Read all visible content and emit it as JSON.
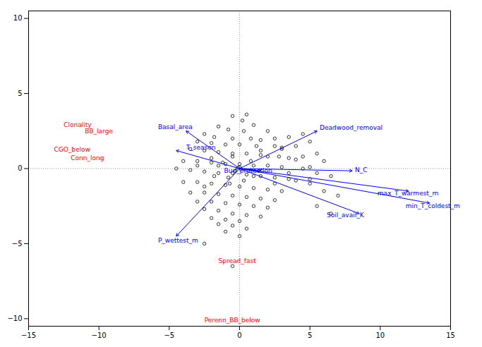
{
  "chart_data": {
    "type": "biplot",
    "background": "#ffffff",
    "xlim": [
      -15,
      15
    ],
    "ylim": [
      -10.5,
      10.5
    ],
    "xticks": [
      -15,
      -10,
      -5,
      0,
      5,
      10,
      15
    ],
    "yticks": [
      -10,
      -5,
      0,
      5,
      10
    ],
    "grid": false,
    "reference_lines": {
      "x": [
        0
      ],
      "y": [
        0
      ],
      "color": "gray",
      "line_style": "dotted"
    },
    "points": {
      "color": "black",
      "marker": "open_circle",
      "values": [
        [
          0.5,
          3.6
        ],
        [
          -0.5,
          3.5
        ],
        [
          0.2,
          3.2
        ],
        [
          1.0,
          2.9
        ],
        [
          -1.5,
          2.8
        ],
        [
          -0.8,
          2.6
        ],
        [
          0.3,
          2.5
        ],
        [
          2.0,
          2.5
        ],
        [
          -2.5,
          2.3
        ],
        [
          -1.8,
          2.1
        ],
        [
          -0.5,
          2.0
        ],
        [
          0.8,
          2.0
        ],
        [
          1.5,
          1.9
        ],
        [
          -3.0,
          1.8
        ],
        [
          -2.0,
          1.7
        ],
        [
          -1.0,
          1.6
        ],
        [
          0.0,
          1.6
        ],
        [
          1.2,
          1.5
        ],
        [
          2.5,
          1.5
        ],
        [
          3.0,
          1.4
        ],
        [
          -3.5,
          1.3
        ],
        [
          -2.5,
          1.2
        ],
        [
          -1.5,
          1.1
        ],
        [
          -0.5,
          1.0
        ],
        [
          0.5,
          1.0
        ],
        [
          1.5,
          0.9
        ],
        [
          2.8,
          0.8
        ],
        [
          3.5,
          0.7
        ],
        [
          4.0,
          0.6
        ],
        [
          -4.0,
          0.5
        ],
        [
          -3.0,
          0.5
        ],
        [
          -2.0,
          0.4
        ],
        [
          -1.0,
          0.3
        ],
        [
          0.0,
          0.3
        ],
        [
          1.0,
          0.2
        ],
        [
          2.0,
          0.2
        ],
        [
          3.0,
          0.1
        ],
        [
          4.5,
          0.0
        ],
        [
          5.0,
          0.1
        ],
        [
          -4.5,
          0.0
        ],
        [
          -3.5,
          -0.1
        ],
        [
          -2.5,
          -0.2
        ],
        [
          -1.5,
          -0.3
        ],
        [
          -0.5,
          -0.3
        ],
        [
          0.5,
          -0.4
        ],
        [
          1.5,
          -0.5
        ],
        [
          2.5,
          -0.6
        ],
        [
          3.5,
          -0.7
        ],
        [
          4.0,
          -0.8
        ],
        [
          5.0,
          -0.7
        ],
        [
          -4.0,
          -0.9
        ],
        [
          -3.0,
          -0.9
        ],
        [
          -2.0,
          -1.0
        ],
        [
          -1.0,
          -1.1
        ],
        [
          0.0,
          -1.2
        ],
        [
          1.0,
          -1.3
        ],
        [
          2.0,
          -1.4
        ],
        [
          3.0,
          -1.5
        ],
        [
          -3.5,
          -1.6
        ],
        [
          -2.5,
          -1.6
        ],
        [
          -1.5,
          -1.7
        ],
        [
          -0.5,
          -1.8
        ],
        [
          0.5,
          -1.9
        ],
        [
          1.5,
          -2.0
        ],
        [
          2.5,
          -2.1
        ],
        [
          -3.0,
          -2.2
        ],
        [
          -2.0,
          -2.2
        ],
        [
          -1.0,
          -2.3
        ],
        [
          0.0,
          -2.4
        ],
        [
          1.0,
          -2.5
        ],
        [
          2.0,
          -2.6
        ],
        [
          -2.5,
          -2.7
        ],
        [
          -1.5,
          -2.8
        ],
        [
          -0.5,
          -3.0
        ],
        [
          0.5,
          -3.1
        ],
        [
          1.5,
          -3.2
        ],
        [
          -2.0,
          -3.3
        ],
        [
          -1.0,
          -3.4
        ],
        [
          0.0,
          -3.5
        ],
        [
          -1.5,
          -3.7
        ],
        [
          -0.5,
          -3.8
        ],
        [
          0.5,
          -4.0
        ],
        [
          -1.0,
          -4.2
        ],
        [
          0.0,
          -4.5
        ],
        [
          -2.5,
          -5.0
        ],
        [
          -0.5,
          -6.5
        ],
        [
          4.5,
          2.3
        ],
        [
          3.5,
          2.1
        ],
        [
          2.5,
          2.0
        ],
        [
          5.0,
          1.8
        ],
        [
          4.0,
          1.5
        ],
        [
          3.0,
          1.3
        ],
        [
          5.5,
          1.0
        ],
        [
          4.5,
          0.8
        ],
        [
          6.0,
          0.5
        ],
        [
          5.5,
          -0.3
        ],
        [
          6.5,
          -0.5
        ],
        [
          5.0,
          -1.0
        ],
        [
          6.0,
          -1.5
        ],
        [
          7.0,
          -1.8
        ],
        [
          5.5,
          -2.5
        ],
        [
          6.5,
          -3.0
        ],
        [
          -0.3,
          -0.15
        ],
        [
          -0.1,
          0.05
        ],
        [
          0.1,
          -0.05
        ],
        [
          0.0,
          0.1
        ],
        [
          -1.2,
          0.4
        ],
        [
          -0.8,
          -0.6
        ],
        [
          0.8,
          0.5
        ],
        [
          -0.5,
          0.8
        ],
        [
          0.3,
          -0.8
        ],
        [
          -1.5,
          0.2
        ],
        [
          1.0,
          -0.5
        ],
        [
          -0.7,
          -1.0
        ],
        [
          2.0,
          0.8
        ],
        [
          -2.0,
          0.7
        ],
        [
          1.5,
          1.2
        ],
        [
          -1.8,
          -0.5
        ],
        [
          3.5,
          -0.3
        ],
        [
          -3.0,
          0.2
        ],
        [
          2.5,
          -1.0
        ],
        [
          -2.5,
          -1.2
        ]
      ]
    },
    "arrows": {
      "color": "blue",
      "from": [
        0,
        0
      ],
      "items": [
        {
          "label": "Basal_area",
          "x": -3.8,
          "y": 2.5,
          "label_x": -5.8,
          "label_y": 2.75
        },
        {
          "label": "Deadwood_removal",
          "x": 5.5,
          "y": 2.5,
          "label_x": 5.7,
          "label_y": 2.7
        },
        {
          "label": "T_season",
          "x": -4.5,
          "y": 1.2,
          "label_x": -3.8,
          "label_y": 1.4
        },
        {
          "label": "Bud_protection",
          "x": 1.5,
          "y": -0.15,
          "label_x": -1.1,
          "label_y": -0.15
        },
        {
          "label": "N_C",
          "x": 8.0,
          "y": -0.15,
          "label_x": 8.2,
          "label_y": -0.1
        },
        {
          "label": "max_T_warmest_m",
          "x": 12.0,
          "y": -1.5,
          "label_x": 9.8,
          "label_y": -1.65
        },
        {
          "label": "min_T_coldest_m",
          "x": 13.5,
          "y": -2.3,
          "label_x": 11.8,
          "label_y": -2.5
        },
        {
          "label": "Soil_avail_K",
          "x": 8.5,
          "y": -3.0,
          "label_x": 6.2,
          "label_y": -3.1
        },
        {
          "label": "P_wettest_m",
          "x": -4.5,
          "y": -4.5,
          "label_x": -5.8,
          "label_y": -4.8
        }
      ]
    },
    "labels": {
      "color": "red",
      "items": [
        {
          "label": "Clonality",
          "x": -12.5,
          "y": 2.9
        },
        {
          "label": "BB_large",
          "x": -11.0,
          "y": 2.5
        },
        {
          "label": "CGO_below",
          "x": -13.2,
          "y": 1.25
        },
        {
          "label": "Conn_long",
          "x": -12.0,
          "y": 0.7
        },
        {
          "label": "Spread_fast",
          "x": -1.5,
          "y": -6.15
        },
        {
          "label": "Perenn_BB_below",
          "x": -2.5,
          "y": -10.1
        }
      ]
    }
  }
}
